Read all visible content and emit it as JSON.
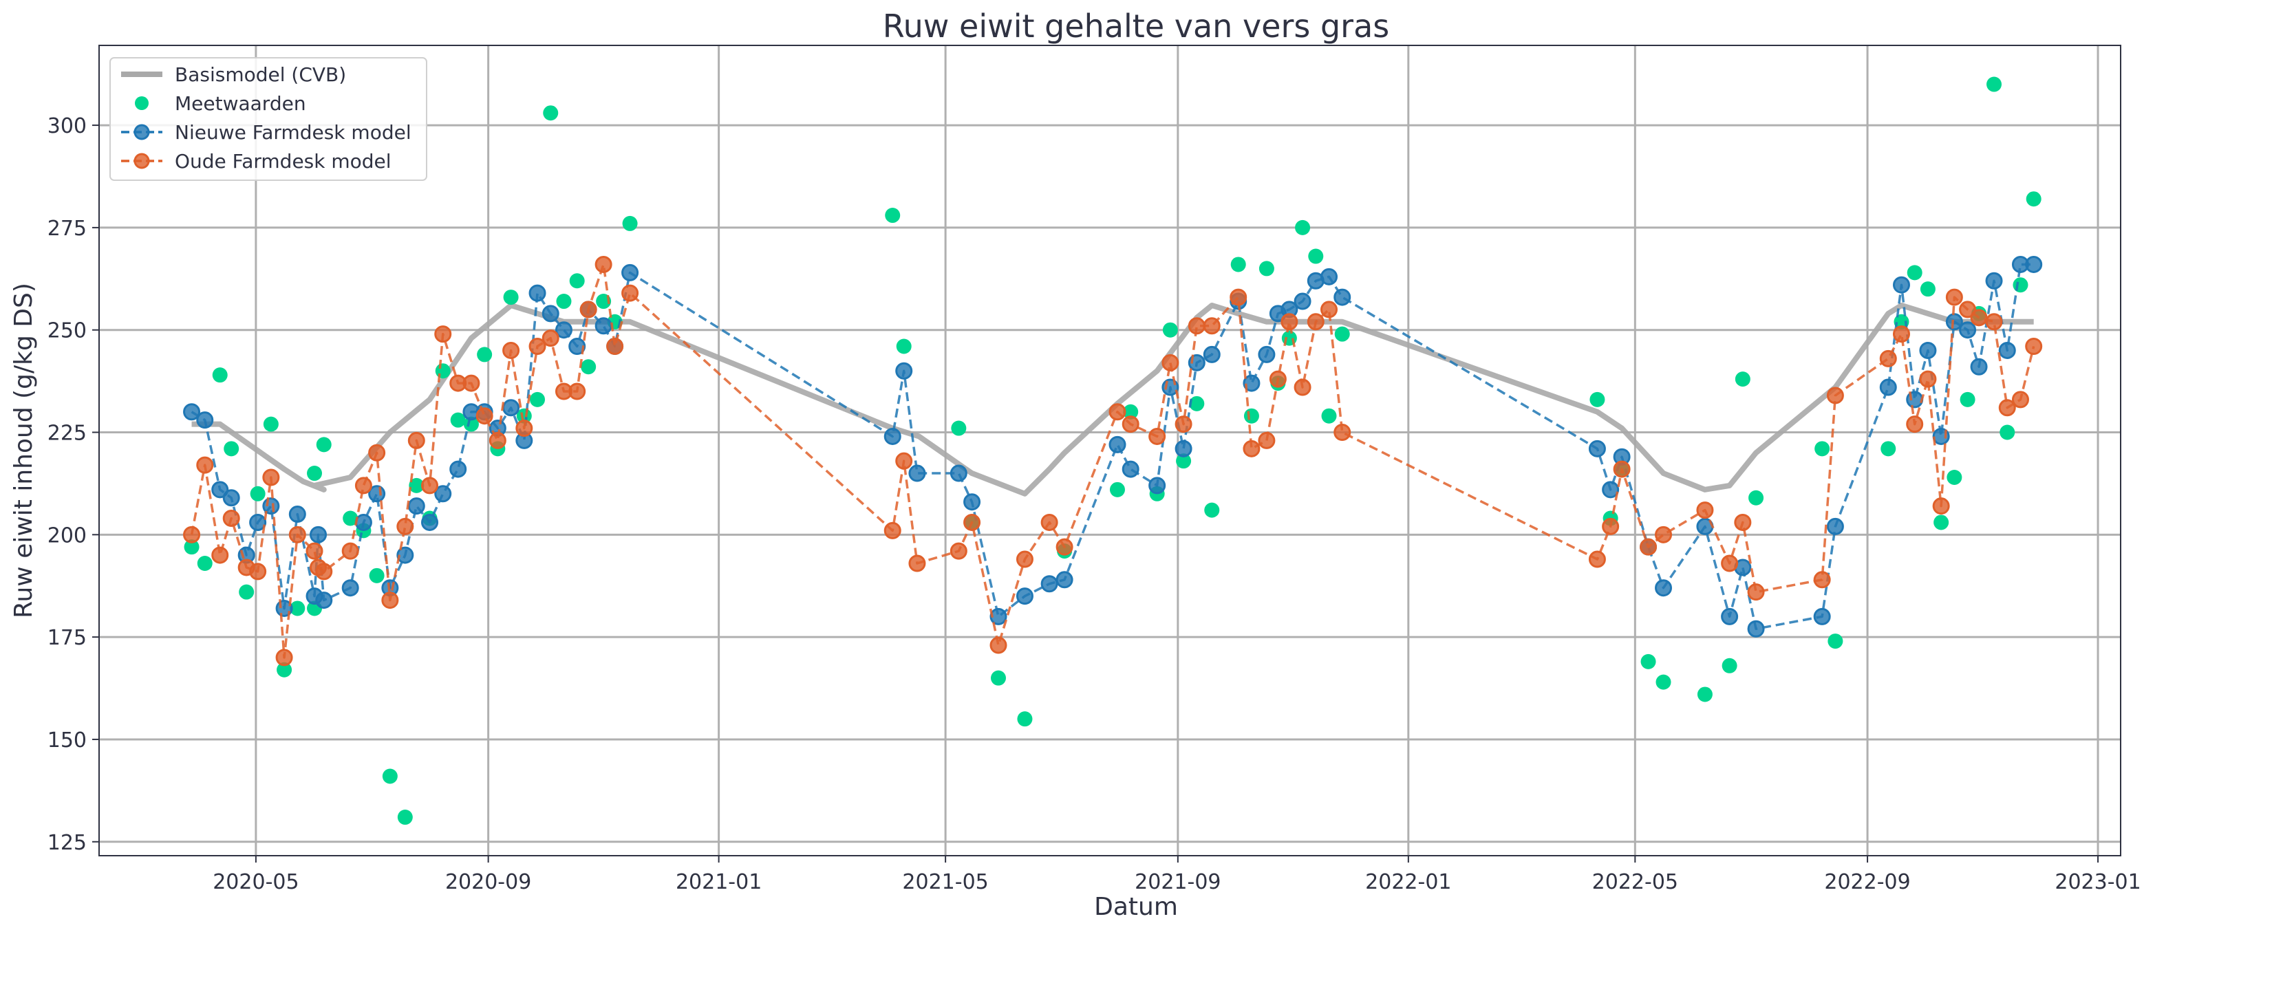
{
  "chart_data": {
    "type": "line",
    "title": "Ruw eiwit gehalte van vers gras",
    "xlabel": "Datum",
    "ylabel": "Ruw eiwit inhoud (g/kg DS)",
    "xlim": [
      "2020-02-08",
      "2023-01-13"
    ],
    "ylim": [
      121.6,
      319.5
    ],
    "x_ticks": [
      "2020-05",
      "2020-09",
      "2021-01",
      "2021-05",
      "2021-09",
      "2022-01",
      "2022-05",
      "2022-09",
      "2023-01"
    ],
    "y_ticks": [
      125,
      150,
      175,
      200,
      225,
      250,
      275,
      300
    ],
    "grid": true,
    "legend_position": "top-left",
    "colors": {
      "basis": "#a9a9a9",
      "meet": "#00d68f",
      "nieuw": "#1f77b4",
      "oud": "#e0602a",
      "grid": "#b0b0b0",
      "text": "#2f3242"
    },
    "series": [
      {
        "name": "Basismodel (CVB)",
        "style": "solid-line",
        "x": [
          "2020-03-28",
          "2020-04-12",
          "2020-05-16",
          "2020-05-26",
          "2020-06-06",
          "2020-06-01",
          "2020-06-20",
          "2020-07-11",
          "2020-08-01",
          "2020-08-23",
          "2020-09-13",
          "2020-10-11",
          "2020-11-15",
          "2021-04-03",
          "2021-04-17",
          "2021-05-15",
          "2021-06-12",
          "2021-06-25",
          "2021-07-03",
          "2021-07-31",
          "2021-08-21",
          "2021-09-11",
          "2021-09-19",
          "2021-10-03",
          "2021-10-18",
          "2021-11-20",
          "2021-11-27",
          "2022-04-11",
          "2022-04-24",
          "2022-05-16",
          "2022-06-07",
          "2022-06-20",
          "2022-07-04",
          "2022-08-15",
          "2022-09-12",
          "2022-09-19",
          "2022-10-17",
          "2022-11-28"
        ],
        "y": [
          227,
          227,
          216,
          213,
          211,
          212,
          214,
          225,
          233,
          248,
          256,
          252,
          252,
          226,
          224,
          215,
          210,
          216,
          220,
          232,
          240,
          253,
          256,
          254,
          252,
          252,
          252,
          230,
          226,
          215,
          211,
          212,
          220,
          236,
          254,
          256,
          252,
          252
        ]
      },
      {
        "name": "Meetwaarden",
        "style": "markers",
        "x": [
          "2020-03-28",
          "2020-04-04",
          "2020-04-12",
          "2020-04-18",
          "2020-04-26",
          "2020-05-02",
          "2020-05-09",
          "2020-05-16",
          "2020-05-23",
          "2020-06-01",
          "2020-06-01",
          "2020-06-06",
          "2020-06-20",
          "2020-06-27",
          "2020-07-04",
          "2020-07-11",
          "2020-07-19",
          "2020-07-25",
          "2020-08-01",
          "2020-08-08",
          "2020-08-16",
          "2020-08-23",
          "2020-08-30",
          "2020-09-06",
          "2020-09-13",
          "2020-09-20",
          "2020-09-27",
          "2020-10-04",
          "2020-10-11",
          "2020-10-18",
          "2020-10-24",
          "2020-11-01",
          "2020-11-07",
          "2020-11-15",
          "2021-04-03",
          "2021-04-09",
          "2021-05-08",
          "2021-05-15",
          "2021-05-29",
          "2021-06-12",
          "2021-07-03",
          "2021-07-31",
          "2021-08-07",
          "2021-08-21",
          "2021-08-28",
          "2021-09-04",
          "2021-09-11",
          "2021-09-19",
          "2021-10-03",
          "2021-10-10",
          "2021-10-18",
          "2021-10-24",
          "2021-10-30",
          "2021-11-06",
          "2021-11-13",
          "2021-11-20",
          "2021-11-27",
          "2022-04-11",
          "2022-04-18",
          "2022-04-24",
          "2022-05-08",
          "2022-05-16",
          "2022-06-07",
          "2022-06-20",
          "2022-06-27",
          "2022-07-04",
          "2022-08-08",
          "2022-08-15",
          "2022-09-12",
          "2022-09-19",
          "2022-09-26",
          "2022-10-03",
          "2022-10-10",
          "2022-10-17",
          "2022-10-24",
          "2022-10-30",
          "2022-11-07",
          "2022-11-14",
          "2022-11-21",
          "2022-11-28"
        ],
        "y": [
          197,
          193,
          239,
          221,
          186,
          210,
          227,
          167,
          182,
          215,
          182,
          222,
          204,
          201,
          190,
          141,
          131,
          212,
          204,
          240,
          228,
          227,
          244,
          221,
          258,
          229,
          233,
          303,
          257,
          262,
          241,
          257,
          252,
          276,
          278,
          246,
          226,
          203,
          165,
          155,
          196,
          211,
          230,
          210,
          250,
          218,
          232,
          206,
          266,
          229,
          265,
          237,
          248,
          275,
          268,
          229,
          249,
          233,
          204,
          216,
          169,
          164,
          161,
          168,
          238,
          209,
          221,
          174,
          221,
          252,
          264,
          260,
          203,
          214,
          233,
          254,
          310,
          225,
          261,
          282
        ]
      },
      {
        "name": "Nieuwe Farmdesk model",
        "style": "dashed-markers",
        "x": [
          "2020-03-28",
          "2020-04-04",
          "2020-04-12",
          "2020-04-18",
          "2020-04-26",
          "2020-05-02",
          "2020-05-09",
          "2020-05-16",
          "2020-05-23",
          "2020-06-01",
          "2020-06-03",
          "2020-06-06",
          "2020-06-20",
          "2020-06-27",
          "2020-07-04",
          "2020-07-11",
          "2020-07-19",
          "2020-07-25",
          "2020-08-01",
          "2020-08-08",
          "2020-08-16",
          "2020-08-23",
          "2020-08-30",
          "2020-09-06",
          "2020-09-13",
          "2020-09-20",
          "2020-09-27",
          "2020-10-04",
          "2020-10-11",
          "2020-10-18",
          "2020-10-24",
          "2020-11-01",
          "2020-11-07",
          "2020-11-15",
          "2021-04-03",
          "2021-04-09",
          "2021-04-16",
          "2021-05-08",
          "2021-05-15",
          "2021-05-29",
          "2021-06-12",
          "2021-06-25",
          "2021-07-03",
          "2021-07-31",
          "2021-08-07",
          "2021-08-21",
          "2021-08-28",
          "2021-09-04",
          "2021-09-11",
          "2021-09-19",
          "2021-10-03",
          "2021-10-10",
          "2021-10-18",
          "2021-10-24",
          "2021-10-30",
          "2021-11-06",
          "2021-11-13",
          "2021-11-20",
          "2021-11-27",
          "2022-04-11",
          "2022-04-18",
          "2022-04-24",
          "2022-05-08",
          "2022-05-16",
          "2022-06-07",
          "2022-06-20",
          "2022-06-27",
          "2022-07-04",
          "2022-08-08",
          "2022-08-15",
          "2022-09-12",
          "2022-09-19",
          "2022-09-26",
          "2022-10-03",
          "2022-10-10",
          "2022-10-17",
          "2022-10-24",
          "2022-10-30",
          "2022-11-07",
          "2022-11-14",
          "2022-11-21",
          "2022-11-28"
        ],
        "y": [
          230,
          228,
          211,
          209,
          195,
          203,
          207,
          182,
          205,
          185,
          200,
          184,
          187,
          203,
          210,
          187,
          195,
          207,
          203,
          210,
          216,
          230,
          230,
          226,
          231,
          223,
          259,
          254,
          250,
          246,
          255,
          251,
          246,
          264,
          224,
          240,
          215,
          215,
          208,
          180,
          185,
          188,
          189,
          222,
          216,
          212,
          236,
          221,
          242,
          244,
          257,
          237,
          244,
          254,
          255,
          257,
          262,
          263,
          258,
          221,
          211,
          219,
          197,
          187,
          202,
          180,
          192,
          177,
          180,
          202,
          236,
          261,
          233,
          245,
          224,
          252,
          250,
          241,
          262,
          245,
          266,
          266
        ]
      },
      {
        "name": "Oude Farmdesk model",
        "style": "dashed-markers",
        "x": [
          "2020-03-28",
          "2020-04-04",
          "2020-04-12",
          "2020-04-18",
          "2020-04-26",
          "2020-05-02",
          "2020-05-09",
          "2020-05-16",
          "2020-05-23",
          "2020-06-01",
          "2020-06-03",
          "2020-06-06",
          "2020-06-20",
          "2020-06-27",
          "2020-07-04",
          "2020-07-11",
          "2020-07-19",
          "2020-07-25",
          "2020-08-01",
          "2020-08-08",
          "2020-08-16",
          "2020-08-23",
          "2020-08-30",
          "2020-09-06",
          "2020-09-13",
          "2020-09-20",
          "2020-09-27",
          "2020-10-04",
          "2020-10-11",
          "2020-10-18",
          "2020-10-24",
          "2020-11-01",
          "2020-11-07",
          "2020-11-15",
          "2021-04-03",
          "2021-04-09",
          "2021-04-16",
          "2021-05-08",
          "2021-05-15",
          "2021-05-29",
          "2021-06-12",
          "2021-06-25",
          "2021-07-03",
          "2021-07-31",
          "2021-08-07",
          "2021-08-21",
          "2021-08-28",
          "2021-09-04",
          "2021-09-11",
          "2021-09-19",
          "2021-10-03",
          "2021-10-10",
          "2021-10-18",
          "2021-10-24",
          "2021-10-30",
          "2021-11-06",
          "2021-11-13",
          "2021-11-20",
          "2021-11-27",
          "2022-04-11",
          "2022-04-18",
          "2022-04-24",
          "2022-05-08",
          "2022-05-16",
          "2022-06-07",
          "2022-06-20",
          "2022-06-27",
          "2022-07-04",
          "2022-08-08",
          "2022-08-15",
          "2022-09-12",
          "2022-09-19",
          "2022-09-26",
          "2022-10-03",
          "2022-10-10",
          "2022-10-17",
          "2022-10-24",
          "2022-10-30",
          "2022-11-07",
          "2022-11-14",
          "2022-11-21",
          "2022-11-28"
        ],
        "y": [
          200,
          217,
          195,
          204,
          192,
          191,
          214,
          170,
          200,
          196,
          192,
          191,
          196,
          212,
          220,
          184,
          202,
          223,
          212,
          249,
          237,
          237,
          229,
          223,
          245,
          226,
          246,
          248,
          235,
          235,
          255,
          266,
          246,
          259,
          201,
          218,
          193,
          196,
          203,
          173,
          194,
          203,
          197,
          230,
          227,
          224,
          242,
          227,
          251,
          251,
          258,
          221,
          223,
          238,
          252,
          236,
          252,
          255,
          225,
          194,
          202,
          216,
          197,
          200,
          206,
          193,
          203,
          186,
          189,
          234,
          243,
          249,
          227,
          238,
          207,
          258,
          255,
          253,
          252,
          231,
          233,
          246
        ]
      }
    ]
  }
}
